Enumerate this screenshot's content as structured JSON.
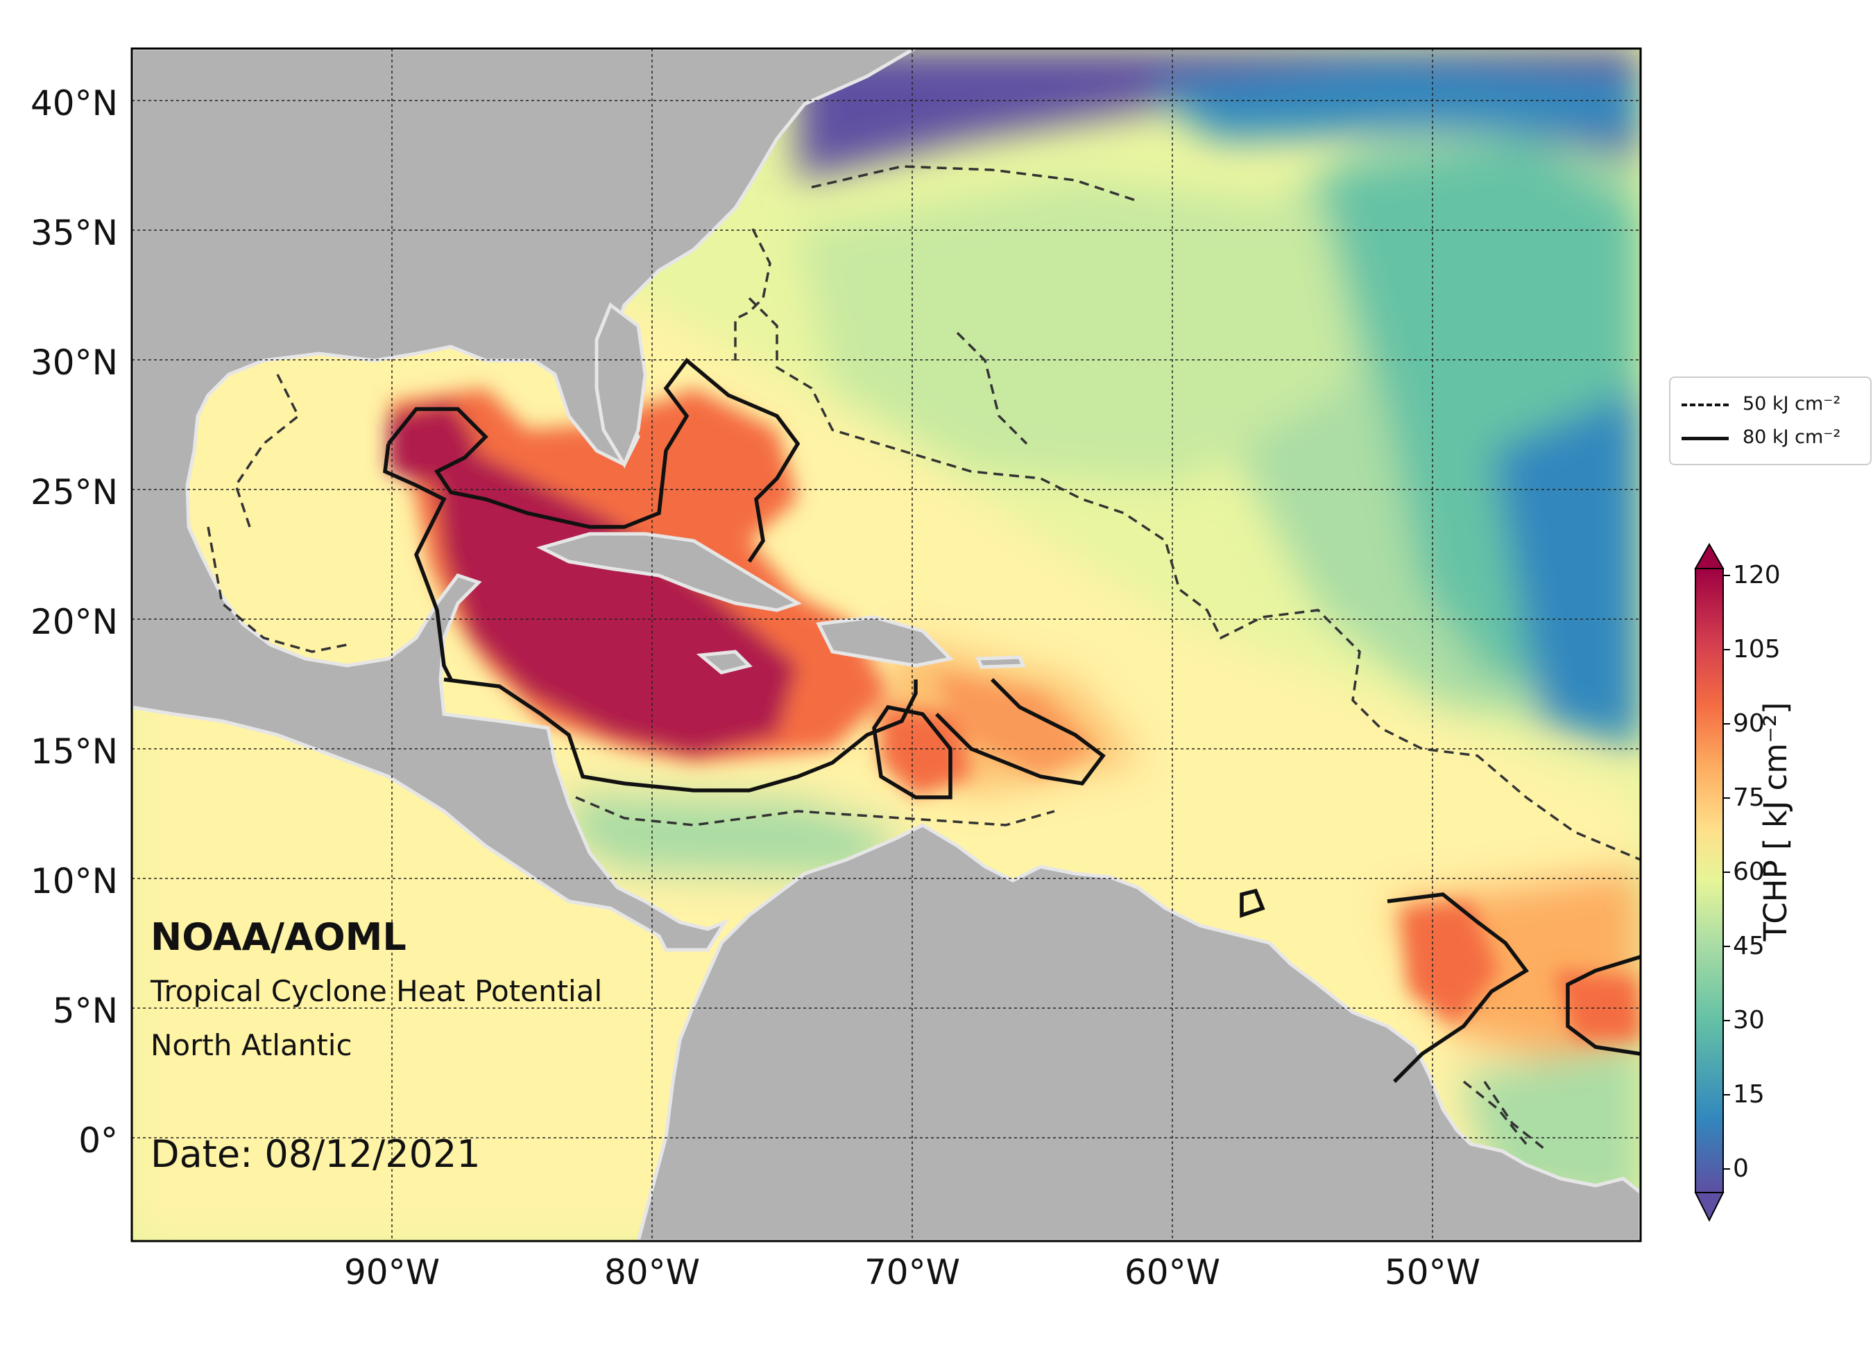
{
  "figure": {
    "organization": "NOAA/AOML",
    "product": "Tropical Cyclone Heat Potential",
    "region": "North Atlantic",
    "date_label": "Date: 08/12/2021"
  },
  "axes": {
    "lat_ticks": [
      "40°N",
      "35°N",
      "30°N",
      "25°N",
      "20°N",
      "15°N",
      "10°N",
      "5°N",
      "0°"
    ],
    "lon_ticks": [
      "90°W",
      "80°W",
      "70°W",
      "60°W",
      "50°W"
    ],
    "lat_range": [
      -4,
      42
    ],
    "lon_range": [
      -100,
      -42
    ]
  },
  "legend": {
    "items": [
      {
        "label": "50 kJ cm⁻²",
        "style": "dashed"
      },
      {
        "label": "80 kJ cm⁻²",
        "style": "solid"
      }
    ]
  },
  "colorbar": {
    "title": "TCHP [ kJ cm⁻²]",
    "ticks": [
      "120",
      "105",
      "90",
      "75",
      "60",
      "45",
      "30",
      "15",
      "0"
    ],
    "min": -5,
    "max": 120,
    "colors": [
      "#5e4fa2",
      "#3288bd",
      "#66c2a5",
      "#abdda4",
      "#e6f598",
      "#fee08b",
      "#fdae61",
      "#f46d43",
      "#d53e4f",
      "#9e0142"
    ]
  },
  "map_colors": {
    "land": "#b2b2b2",
    "land_border": "#e6e6e6",
    "cold_water": "#5e4fa2",
    "mid_water": "#abdda4",
    "warm_water": "#fee08b",
    "hot_water": "#f46d43",
    "very_hot_water": "#b01e4b"
  }
}
